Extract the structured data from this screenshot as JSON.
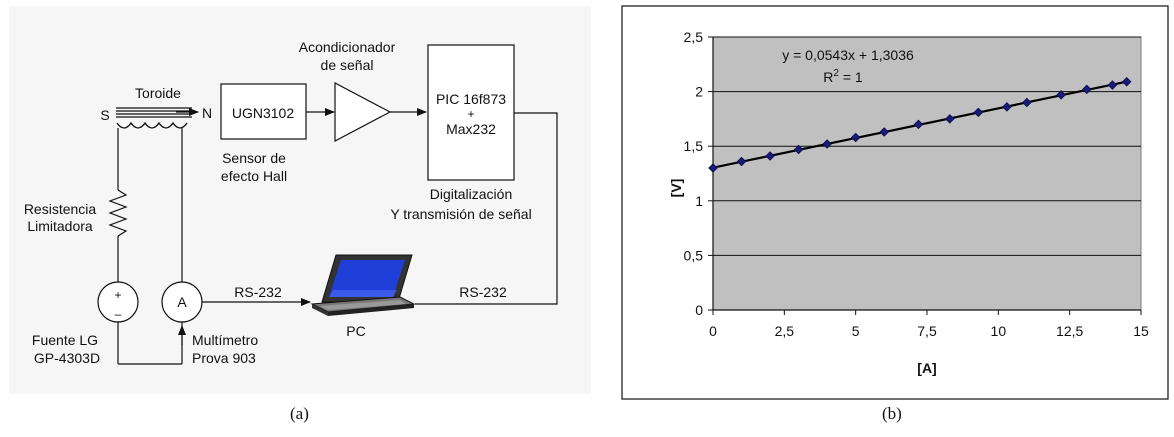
{
  "diagram": {
    "label_acond_1": "Acondicionador",
    "label_acond_2": "de señal",
    "toroide": "Toroide",
    "pole_s": "S",
    "pole_n": "N",
    "sensor_chip": "UGN3102",
    "sensor_1": "Sensor de",
    "sensor_2": "efecto Hall",
    "pic_1": "PIC 16f873",
    "pic_plus": "+",
    "pic_2": "Max232",
    "digit_1": "Digitalización",
    "digit_2": "Y transmisión de señal",
    "res_1": "Resistencia",
    "res_2": "Limitadora",
    "rs232_left": "RS-232",
    "rs232_right": "RS-232",
    "pc": "PC",
    "ammeter": "A",
    "source_plus": "+",
    "source_minus": "–",
    "fuente_1": "Fuente LG",
    "fuente_2": "GP-4303D",
    "multi_1": "Multímetro",
    "multi_2": "Prova 903"
  },
  "captions": {
    "a": "(a)",
    "b": "(b)"
  },
  "chart_data": {
    "type": "scatter",
    "xlabel": "[A]",
    "ylabel": "[V]",
    "xlim": [
      0,
      15
    ],
    "ylim": [
      0,
      2.5
    ],
    "xticks": [
      "0",
      "2,5",
      "5",
      "7,5",
      "10",
      "12,5",
      "15"
    ],
    "yticks": [
      "0",
      "0,5",
      "1",
      "1,5",
      "2",
      "2,5"
    ],
    "grid": "horizontal",
    "plot_background": "#c0c0c0",
    "marker_color": "#1a1a7a",
    "line_color": "#000000",
    "equation": "y = 0,0543x + 1,3036",
    "r2_label": "R",
    "r2_exp": "2",
    "r2_value": " = 1",
    "series": [
      {
        "x": [
          0,
          1,
          2,
          3,
          4,
          5,
          6,
          7.2,
          8.3,
          9.3,
          10.3,
          11,
          12.2,
          13.1,
          14,
          14.5
        ],
        "y": [
          1.3,
          1.36,
          1.41,
          1.47,
          1.52,
          1.58,
          1.63,
          1.7,
          1.75,
          1.81,
          1.86,
          1.9,
          1.97,
          2.02,
          2.06,
          2.09
        ]
      }
    ],
    "trendline": {
      "slope": 0.0543,
      "intercept": 1.3036
    }
  }
}
